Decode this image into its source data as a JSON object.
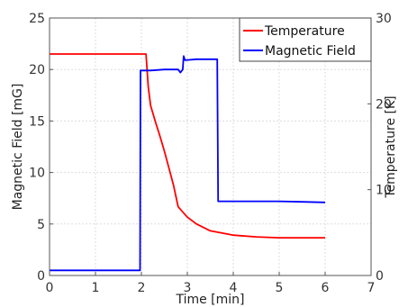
{
  "chart_data": {
    "type": "line",
    "xlabel": "Time [min]",
    "ylabel_left": "Magnetic Field [mG]",
    "ylabel_right": "Temperature [K]",
    "xlim": [
      0,
      7
    ],
    "ylim_left": [
      0,
      25
    ],
    "ylim_right": [
      0,
      30
    ],
    "x_ticks": [
      "0",
      "1",
      "2",
      "3",
      "4",
      "5",
      "6",
      "7"
    ],
    "y_left_ticks": [
      "0",
      "5",
      "10",
      "15",
      "20",
      "25"
    ],
    "y_right_ticks": [
      "0",
      "10",
      "20",
      "30"
    ],
    "grid": true,
    "legend_position": "top-right",
    "series": [
      {
        "name": "Temperature",
        "axis": "right",
        "color": "#ff0000",
        "points": [
          [
            0,
            25.8
          ],
          [
            0.5,
            25.8
          ],
          [
            1.0,
            25.8
          ],
          [
            1.5,
            25.8
          ],
          [
            2.0,
            25.8
          ],
          [
            2.1,
            25.8
          ],
          [
            2.15,
            22.0
          ],
          [
            2.2,
            19.8
          ],
          [
            2.3,
            18.0
          ],
          [
            2.4,
            16.3
          ],
          [
            2.5,
            14.5
          ],
          [
            2.6,
            12.5
          ],
          [
            2.7,
            10.5
          ],
          [
            2.8,
            8.0
          ],
          [
            3.0,
            6.8
          ],
          [
            3.2,
            6.0
          ],
          [
            3.5,
            5.2
          ],
          [
            3.8,
            4.9
          ],
          [
            4.0,
            4.7
          ],
          [
            4.5,
            4.5
          ],
          [
            5.0,
            4.4
          ],
          [
            5.5,
            4.4
          ],
          [
            6.0,
            4.4
          ]
        ]
      },
      {
        "name": "Magnetic Field",
        "axis": "left",
        "color": "#0000ff",
        "points": [
          [
            0,
            0.5
          ],
          [
            1.0,
            0.5
          ],
          [
            1.97,
            0.5
          ],
          [
            1.98,
            19.9
          ],
          [
            2.2,
            19.9
          ],
          [
            2.5,
            20.0
          ],
          [
            2.8,
            20.0
          ],
          [
            2.85,
            19.7
          ],
          [
            2.9,
            20.0
          ],
          [
            2.92,
            21.3
          ],
          [
            2.95,
            20.9
          ],
          [
            3.2,
            21.0
          ],
          [
            3.5,
            21.0
          ],
          [
            3.65,
            21.0
          ],
          [
            3.67,
            7.2
          ],
          [
            4.5,
            7.2
          ],
          [
            5.0,
            7.2
          ],
          [
            5.5,
            7.15
          ],
          [
            6.0,
            7.1
          ]
        ]
      }
    ]
  }
}
